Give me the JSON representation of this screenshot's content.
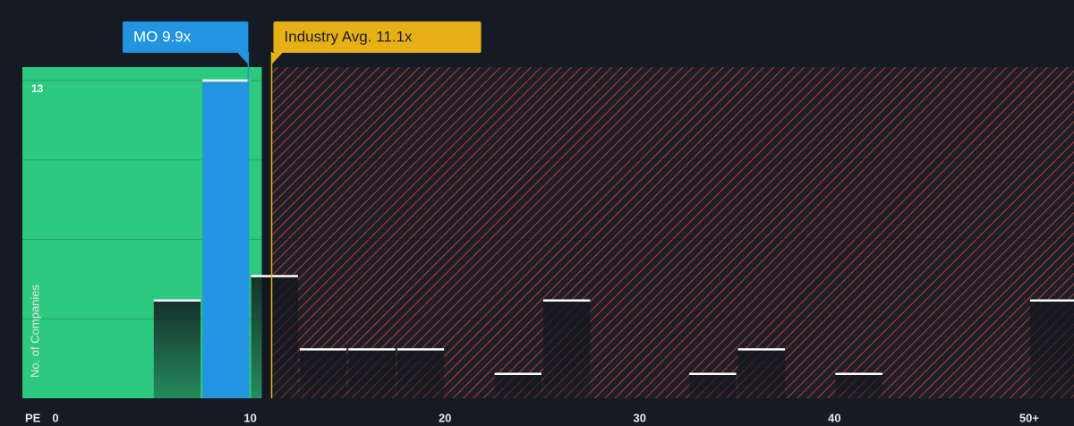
{
  "chart_data": {
    "type": "histogram",
    "bins": [
      0,
      2.5,
      5,
      7.5,
      10,
      12.5,
      15,
      17.5,
      20,
      22.5,
      25,
      27.5,
      30,
      32.5,
      35,
      37.5,
      40,
      42.5,
      45,
      47.5,
      50,
      52.5
    ],
    "values": [
      0,
      0,
      4,
      13,
      5,
      2,
      2,
      2,
      0,
      1,
      4,
      0,
      0,
      1,
      2,
      0,
      1,
      0,
      0,
      0,
      4
    ],
    "highlight_color": "#2394df",
    "undervalued_color": "#2dc97e",
    "overvalued_color": "#c0392b",
    "xlim": [
      -1.7,
      52.3
    ],
    "ylim": [
      0,
      13.55
    ],
    "xticks": [
      0,
      10,
      20,
      30,
      40,
      {
        "value": 50,
        "label": "50+"
      }
    ],
    "yticks": [
      {
        "value": 3.25,
        "label": null
      },
      {
        "value": 6.5,
        "label": null
      },
      {
        "value": 9.75,
        "label": null
      },
      13
    ],
    "x_label": "PE",
    "y_label": "No. of Companies",
    "markers": [
      {
        "label": "MO 9.9x",
        "value": 9.9,
        "color": "#2394df"
      },
      {
        "label": "Industry Avg. 11.1x",
        "value": 11.1,
        "color": "#e8b017"
      }
    ]
  }
}
